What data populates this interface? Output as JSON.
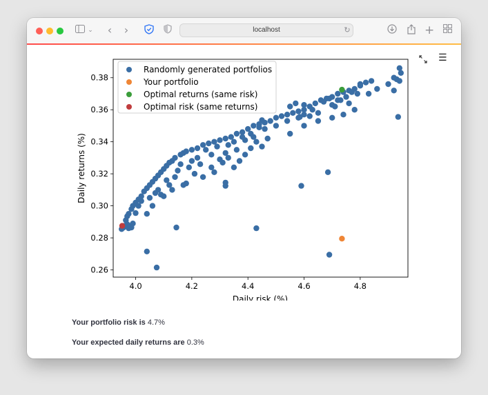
{
  "browser": {
    "address": "localhost"
  },
  "colors": {
    "random": "#3a6ea5",
    "yours": "#ef8636",
    "optimal_returns": "#3b9d3b",
    "optimal_risk": "#c03d3e",
    "accent_start": "#ff4b4b",
    "accent_end": "#ffbd45"
  },
  "chart_data": {
    "type": "scatter",
    "xlabel": "Daily risk (%)",
    "ylabel": "Daily returns (%)",
    "xlim": [
      3.92,
      4.97
    ],
    "ylim": [
      0.2555,
      0.3915
    ],
    "xticks": [
      "4.0",
      "4.2",
      "4.4",
      "4.6",
      "4.8"
    ],
    "yticks": [
      "0.26",
      "0.28",
      "0.30",
      "0.32",
      "0.34",
      "0.36",
      "0.38"
    ],
    "grid": false,
    "legend_position": "top-left",
    "series": [
      {
        "name": "Randomly generated portfolios",
        "color": "#3a6ea5",
        "points": [
          [
            3.957,
            0.2865
          ],
          [
            3.96,
            0.2875
          ],
          [
            3.965,
            0.291
          ],
          [
            3.97,
            0.2935
          ],
          [
            3.975,
            0.295
          ],
          [
            3.985,
            0.298
          ],
          [
            3.99,
            0.3
          ],
          [
            4.0,
            0.302
          ],
          [
            4.01,
            0.304
          ],
          [
            4.02,
            0.306
          ],
          [
            4.03,
            0.309
          ],
          [
            4.04,
            0.311
          ],
          [
            4.05,
            0.313
          ],
          [
            4.06,
            0.315
          ],
          [
            4.07,
            0.317
          ],
          [
            4.08,
            0.319
          ],
          [
            4.09,
            0.321
          ],
          [
            4.1,
            0.323
          ],
          [
            4.11,
            0.325
          ],
          [
            4.12,
            0.327
          ],
          [
            4.13,
            0.328
          ],
          [
            4.14,
            0.33
          ],
          [
            4.16,
            0.332
          ],
          [
            4.17,
            0.333
          ],
          [
            4.18,
            0.334
          ],
          [
            4.2,
            0.335
          ],
          [
            4.22,
            0.336
          ],
          [
            4.24,
            0.338
          ],
          [
            4.26,
            0.339
          ],
          [
            4.28,
            0.34
          ],
          [
            4.3,
            0.341
          ],
          [
            4.32,
            0.342
          ],
          [
            4.34,
            0.343
          ],
          [
            4.36,
            0.345
          ],
          [
            4.38,
            0.346
          ],
          [
            4.4,
            0.348
          ],
          [
            4.42,
            0.35
          ],
          [
            4.44,
            0.351
          ],
          [
            4.46,
            0.352
          ],
          [
            4.48,
            0.353
          ],
          [
            4.5,
            0.355
          ],
          [
            4.52,
            0.356
          ],
          [
            4.54,
            0.357
          ],
          [
            4.56,
            0.358
          ],
          [
            4.58,
            0.359
          ],
          [
            4.6,
            0.36
          ],
          [
            4.62,
            0.362
          ],
          [
            4.64,
            0.364
          ],
          [
            4.66,
            0.366
          ],
          [
            4.68,
            0.367
          ],
          [
            4.7,
            0.368
          ],
          [
            4.72,
            0.37
          ],
          [
            4.74,
            0.371
          ],
          [
            4.76,
            0.372
          ],
          [
            4.78,
            0.373
          ],
          [
            4.8,
            0.375
          ],
          [
            4.82,
            0.377
          ],
          [
            4.84,
            0.378
          ],
          [
            4.92,
            0.38
          ],
          [
            4.93,
            0.379
          ],
          [
            4.94,
            0.386
          ],
          [
            4.945,
            0.383
          ],
          [
            4.94,
            0.378
          ],
          [
            3.97,
            0.2885
          ],
          [
            3.98,
            0.2875
          ],
          [
            3.985,
            0.2865
          ],
          [
            3.99,
            0.289
          ],
          [
            4.0,
            0.2955
          ],
          [
            4.01,
            0.3
          ],
          [
            4.02,
            0.303
          ],
          [
            4.05,
            0.305
          ],
          [
            4.06,
            0.3
          ],
          [
            4.07,
            0.308
          ],
          [
            4.08,
            0.31
          ],
          [
            4.1,
            0.306
          ],
          [
            4.11,
            0.316
          ],
          [
            4.12,
            0.313
          ],
          [
            4.14,
            0.318
          ],
          [
            4.15,
            0.322
          ],
          [
            4.16,
            0.326
          ],
          [
            4.17,
            0.313
          ],
          [
            4.19,
            0.324
          ],
          [
            4.2,
            0.328
          ],
          [
            4.22,
            0.33
          ],
          [
            4.23,
            0.326
          ],
          [
            4.25,
            0.335
          ],
          [
            4.27,
            0.332
          ],
          [
            4.29,
            0.337
          ],
          [
            4.3,
            0.329
          ],
          [
            4.32,
            0.333
          ],
          [
            4.33,
            0.338
          ],
          [
            4.35,
            0.34
          ],
          [
            4.36,
            0.335
          ],
          [
            4.38,
            0.343
          ],
          [
            4.39,
            0.341
          ],
          [
            4.41,
            0.345
          ],
          [
            4.42,
            0.343
          ],
          [
            4.44,
            0.349
          ],
          [
            4.46,
            0.348
          ],
          [
            4.5,
            0.35
          ],
          [
            4.54,
            0.353
          ],
          [
            4.58,
            0.355
          ],
          [
            4.6,
            0.357
          ],
          [
            4.62,
            0.356
          ],
          [
            4.65,
            0.358
          ],
          [
            4.7,
            0.363
          ],
          [
            4.73,
            0.366
          ],
          [
            4.75,
            0.368
          ],
          [
            4.78,
            0.36
          ],
          [
            4.8,
            0.376
          ],
          [
            4.83,
            0.37
          ],
          [
            4.86,
            0.373
          ],
          [
            4.9,
            0.376
          ],
          [
            4.92,
            0.372
          ],
          [
            4.04,
            0.295
          ],
          [
            4.09,
            0.307
          ],
          [
            4.13,
            0.31
          ],
          [
            4.18,
            0.314
          ],
          [
            4.21,
            0.32
          ],
          [
            4.24,
            0.318
          ],
          [
            4.27,
            0.324
          ],
          [
            4.28,
            0.321
          ],
          [
            4.31,
            0.327
          ],
          [
            4.33,
            0.33
          ],
          [
            4.35,
            0.324
          ],
          [
            4.37,
            0.328
          ],
          [
            4.39,
            0.332
          ],
          [
            4.41,
            0.336
          ],
          [
            4.43,
            0.34
          ],
          [
            4.45,
            0.337
          ],
          [
            4.47,
            0.342
          ],
          [
            4.55,
            0.345
          ],
          [
            4.6,
            0.35
          ],
          [
            4.65,
            0.353
          ],
          [
            4.7,
            0.355
          ],
          [
            4.74,
            0.357
          ],
          [
            4.55,
            0.362
          ],
          [
            4.57,
            0.364
          ],
          [
            4.63,
            0.36
          ],
          [
            4.67,
            0.365
          ],
          [
            4.69,
            0.367
          ],
          [
            4.71,
            0.362
          ],
          [
            4.72,
            0.366
          ],
          [
            4.76,
            0.364
          ],
          [
            4.77,
            0.371
          ],
          [
            4.79,
            0.37
          ],
          [
            3.95,
            0.2855
          ],
          [
            3.975,
            0.286
          ],
          [
            4.04,
            0.2715
          ],
          [
            4.075,
            0.2615
          ],
          [
            4.145,
            0.2865
          ],
          [
            4.43,
            0.286
          ],
          [
            4.69,
            0.2695
          ],
          [
            4.59,
            0.3125
          ],
          [
            4.685,
            0.321
          ],
          [
            4.32,
            0.3125
          ],
          [
            4.32,
            0.3145
          ],
          [
            4.935,
            0.3555
          ],
          [
            4.6,
            0.363
          ],
          [
            4.585,
            0.3555
          ],
          [
            4.45,
            0.3535
          ]
        ]
      },
      {
        "name": "Your portfolio",
        "color": "#ef8636",
        "points": [
          [
            4.735,
            0.2795
          ]
        ]
      },
      {
        "name": "Optimal returns (same risk)",
        "color": "#3b9d3b",
        "points": [
          [
            4.735,
            0.3725
          ]
        ]
      },
      {
        "name": "Optimal risk (same returns)",
        "color": "#c03d3e",
        "points": [
          [
            3.952,
            0.2875
          ]
        ]
      }
    ]
  },
  "summary": {
    "risk_label": "Your portfolio risk is",
    "risk_value": "4.7%",
    "returns_label": "Your expected daily returns are",
    "returns_value": "0.3%"
  }
}
